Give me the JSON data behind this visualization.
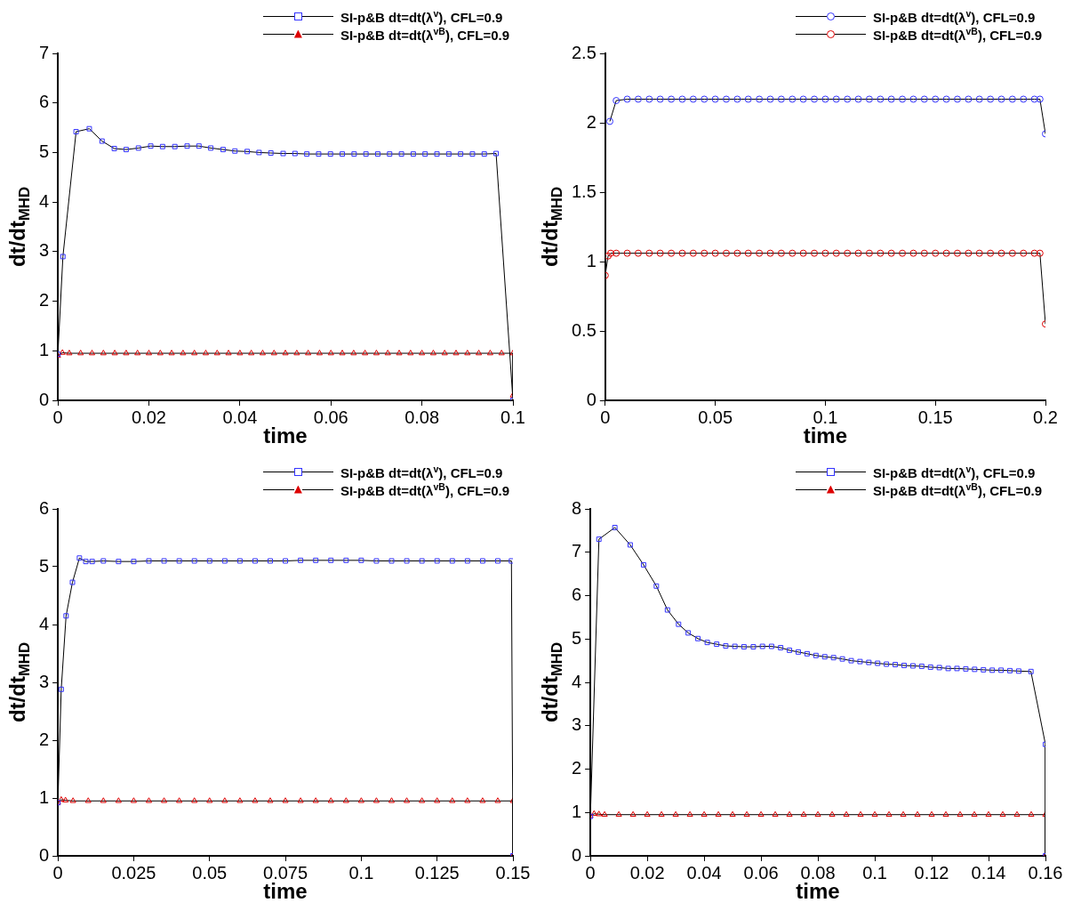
{
  "chart_data": [
    {
      "type": "line",
      "xlabel": "time",
      "ylabel": "dt/dt$_{MHD}$",
      "legend": "top right",
      "xlim": [
        0,
        0.1
      ],
      "xticks": [
        0,
        0.02,
        0.04,
        0.06,
        0.08,
        0.1
      ],
      "ylim": [
        0,
        7
      ],
      "yticks": [
        0,
        1,
        2,
        3,
        4,
        5,
        6,
        7
      ],
      "series": [
        {
          "name": "SI-p&B dt=dt(λ$^{v}$), CFL=0.9",
          "color": "#3333ff",
          "marker": "square",
          "x": [
            0,
            0.0011,
            0.004,
            0.0069,
            0.0097,
            0.0124,
            0.015,
            0.0177,
            0.0204,
            0.023,
            0.0257,
            0.0284,
            0.031,
            0.0336,
            0.0363,
            0.0389,
            0.0416,
            0.0442,
            0.0468,
            0.0495,
            0.0521,
            0.0547,
            0.0573,
            0.0599,
            0.0625,
            0.0651,
            0.0677,
            0.0703,
            0.0729,
            0.0755,
            0.0781,
            0.0807,
            0.0833,
            0.0859,
            0.0885,
            0.0911,
            0.0937,
            0.0963,
            0.1
          ],
          "values": [
            0.93,
            2.9,
            5.42,
            5.48,
            5.23,
            5.08,
            5.06,
            5.09,
            5.13,
            5.12,
            5.12,
            5.13,
            5.13,
            5.09,
            5.06,
            5.03,
            5.02,
            5.0,
            4.99,
            4.98,
            4.98,
            4.97,
            4.97,
            4.97,
            4.97,
            4.97,
            4.97,
            4.97,
            4.97,
            4.97,
            4.97,
            4.97,
            4.97,
            4.97,
            4.97,
            4.97,
            4.97,
            4.98,
            0
          ]
        },
        {
          "name": "SI-p&B dt=dt(λ$^{vB}$), CFL=0.9",
          "color": "#dd0000",
          "marker": "triangle",
          "x": [
            0,
            0.001,
            0.0025,
            0.005,
            0.0075,
            0.01,
            0.0125,
            0.015,
            0.0175,
            0.02,
            0.0225,
            0.025,
            0.0275,
            0.03,
            0.0325,
            0.035,
            0.0375,
            0.04,
            0.0425,
            0.045,
            0.0475,
            0.05,
            0.0525,
            0.055,
            0.0575,
            0.06,
            0.0625,
            0.065,
            0.0675,
            0.07,
            0.0725,
            0.075,
            0.0775,
            0.08,
            0.0825,
            0.085,
            0.0875,
            0.09,
            0.0925,
            0.095,
            0.0975,
            0.1,
            0.1
          ],
          "values": [
            0.9,
            0.96,
            0.95,
            0.95,
            0.95,
            0.95,
            0.95,
            0.95,
            0.95,
            0.95,
            0.95,
            0.95,
            0.95,
            0.95,
            0.95,
            0.95,
            0.95,
            0.95,
            0.95,
            0.95,
            0.95,
            0.95,
            0.95,
            0.95,
            0.95,
            0.95,
            0.95,
            0.95,
            0.95,
            0.95,
            0.95,
            0.95,
            0.95,
            0.95,
            0.95,
            0.95,
            0.95,
            0.95,
            0.95,
            0.95,
            0.95,
            0.95,
            0.1
          ]
        }
      ]
    },
    {
      "type": "line",
      "xlabel": "time",
      "ylabel": "dt/dt$_{MHD}$",
      "legend": "top right",
      "xlim": [
        0,
        0.2
      ],
      "xticks": [
        0,
        0.05,
        0.1,
        0.15,
        0.2
      ],
      "ylim": [
        0,
        2.5
      ],
      "yticks": [
        0,
        0.5,
        1,
        1.5,
        2,
        2.5
      ],
      "series": [
        {
          "name": "SI-p&B dt=dt(λ$^{v}$), CFL=0.9",
          "color": "#3333ff",
          "marker": "circle",
          "x": [
            0.0021,
            0.005,
            0.01,
            0.015,
            0.02,
            0.025,
            0.03,
            0.035,
            0.04,
            0.045,
            0.05,
            0.055,
            0.06,
            0.065,
            0.07,
            0.075,
            0.08,
            0.085,
            0.09,
            0.095,
            0.1,
            0.105,
            0.11,
            0.115,
            0.12,
            0.125,
            0.13,
            0.135,
            0.14,
            0.145,
            0.15,
            0.155,
            0.16,
            0.165,
            0.17,
            0.175,
            0.18,
            0.185,
            0.19,
            0.195,
            0.1975,
            0.2
          ],
          "values": [
            2.01,
            2.16,
            2.17,
            2.17,
            2.17,
            2.17,
            2.17,
            2.17,
            2.17,
            2.17,
            2.17,
            2.17,
            2.17,
            2.17,
            2.17,
            2.17,
            2.17,
            2.17,
            2.17,
            2.17,
            2.17,
            2.17,
            2.17,
            2.17,
            2.17,
            2.17,
            2.17,
            2.17,
            2.17,
            2.17,
            2.17,
            2.17,
            2.17,
            2.17,
            2.17,
            2.17,
            2.17,
            2.17,
            2.17,
            2.17,
            2.17,
            1.92
          ]
        },
        {
          "name": "SI-p&B dt=dt(λ$^{vB}$), CFL=0.9",
          "color": "#dd0000",
          "marker": "circle",
          "x": [
            0,
            0.0013,
            0.0025,
            0.005,
            0.01,
            0.015,
            0.02,
            0.025,
            0.03,
            0.035,
            0.04,
            0.045,
            0.05,
            0.055,
            0.06,
            0.065,
            0.07,
            0.075,
            0.08,
            0.085,
            0.09,
            0.095,
            0.1,
            0.105,
            0.11,
            0.115,
            0.12,
            0.125,
            0.13,
            0.135,
            0.14,
            0.145,
            0.15,
            0.155,
            0.16,
            0.165,
            0.17,
            0.175,
            0.18,
            0.185,
            0.19,
            0.195,
            0.1975,
            0.2
          ],
          "values": [
            0.9,
            1.04,
            1.06,
            1.06,
            1.06,
            1.06,
            1.06,
            1.06,
            1.06,
            1.06,
            1.06,
            1.06,
            1.06,
            1.06,
            1.06,
            1.06,
            1.06,
            1.06,
            1.06,
            1.06,
            1.06,
            1.06,
            1.06,
            1.06,
            1.06,
            1.06,
            1.06,
            1.06,
            1.06,
            1.06,
            1.06,
            1.06,
            1.06,
            1.06,
            1.06,
            1.06,
            1.06,
            1.06,
            1.06,
            1.06,
            1.06,
            1.06,
            1.06,
            0.55
          ]
        }
      ]
    },
    {
      "type": "line",
      "xlabel": "time",
      "ylabel": "dt/dt$_{MHD}$",
      "legend": "top right",
      "xlim": [
        0,
        0.15
      ],
      "xticks": [
        0,
        0.025,
        0.05,
        0.075,
        0.1,
        0.125,
        0.15
      ],
      "ylim": [
        0,
        6
      ],
      "yticks": [
        0,
        1,
        2,
        3,
        4,
        5,
        6
      ],
      "series": [
        {
          "name": "SI-p&B dt=dt(λ$^{v}$), CFL=0.9",
          "color": "#3333ff",
          "marker": "square",
          "x": [
            0,
            0.0011,
            0.0027,
            0.0048,
            0.0071,
            0.0092,
            0.0113,
            0.015,
            0.02,
            0.025,
            0.03,
            0.035,
            0.04,
            0.045,
            0.05,
            0.055,
            0.06,
            0.065,
            0.07,
            0.075,
            0.08,
            0.085,
            0.09,
            0.095,
            0.1,
            0.105,
            0.11,
            0.115,
            0.12,
            0.125,
            0.13,
            0.135,
            0.14,
            0.145,
            0.1495,
            0.15
          ],
          "values": [
            0.92,
            2.88,
            4.15,
            4.73,
            5.15,
            5.09,
            5.09,
            5.1,
            5.09,
            5.09,
            5.1,
            5.1,
            5.1,
            5.1,
            5.1,
            5.1,
            5.1,
            5.1,
            5.1,
            5.1,
            5.11,
            5.11,
            5.11,
            5.11,
            5.11,
            5.1,
            5.1,
            5.1,
            5.1,
            5.1,
            5.1,
            5.1,
            5.1,
            5.1,
            5.1,
            0
          ]
        },
        {
          "name": "SI-p&B dt=dt(λ$^{vB}$), CFL=0.9",
          "color": "#dd0000",
          "marker": "triangle",
          "x": [
            0,
            0.0011,
            0.0025,
            0.005,
            0.01,
            0.015,
            0.02,
            0.025,
            0.03,
            0.035,
            0.04,
            0.045,
            0.05,
            0.055,
            0.06,
            0.065,
            0.07,
            0.075,
            0.08,
            0.085,
            0.09,
            0.095,
            0.1,
            0.105,
            0.11,
            0.115,
            0.12,
            0.125,
            0.13,
            0.135,
            0.14,
            0.145,
            0.15,
            0.15
          ],
          "values": [
            0.92,
            0.97,
            0.96,
            0.95,
            0.95,
            0.95,
            0.95,
            0.95,
            0.95,
            0.95,
            0.95,
            0.95,
            0.95,
            0.95,
            0.95,
            0.95,
            0.95,
            0.95,
            0.95,
            0.95,
            0.95,
            0.95,
            0.95,
            0.95,
            0.95,
            0.95,
            0.95,
            0.95,
            0.95,
            0.95,
            0.95,
            0.95,
            0.95,
            0
          ]
        }
      ]
    },
    {
      "type": "line",
      "xlabel": "time",
      "ylabel": "dt/dt$_{MHD}$",
      "legend": "top right",
      "xlim": [
        0,
        0.16
      ],
      "xticks": [
        0,
        0.02,
        0.04,
        0.06,
        0.08,
        0.1,
        0.12,
        0.14,
        0.16
      ],
      "ylim": [
        0,
        8
      ],
      "yticks": [
        0,
        1,
        2,
        3,
        4,
        5,
        6,
        7,
        8
      ],
      "series": [
        {
          "name": "SI-p&B dt=dt(λ$^{v}$), CFL=0.9",
          "color": "#3333ff",
          "marker": "square",
          "x": [
            0,
            0.003,
            0.0086,
            0.014,
            0.0187,
            0.0232,
            0.0271,
            0.031,
            0.0344,
            0.0378,
            0.0411,
            0.0444,
            0.0476,
            0.0508,
            0.054,
            0.0573,
            0.0605,
            0.0637,
            0.0669,
            0.07,
            0.0731,
            0.0762,
            0.0793,
            0.0824,
            0.0855,
            0.0886,
            0.0917,
            0.0948,
            0.0979,
            0.101,
            0.1041,
            0.1072,
            0.1103,
            0.1134,
            0.1165,
            0.1196,
            0.1227,
            0.1258,
            0.1289,
            0.132,
            0.1351,
            0.1382,
            0.1413,
            0.1444,
            0.1475,
            0.1506,
            0.1549,
            0.16,
            0.16
          ],
          "values": [
            0.91,
            7.3,
            7.57,
            7.17,
            6.71,
            6.22,
            5.67,
            5.34,
            5.14,
            5.01,
            4.92,
            4.88,
            4.84,
            4.83,
            4.82,
            4.82,
            4.83,
            4.83,
            4.8,
            4.74,
            4.7,
            4.66,
            4.62,
            4.59,
            4.57,
            4.54,
            4.5,
            4.48,
            4.46,
            4.44,
            4.42,
            4.41,
            4.39,
            4.38,
            4.37,
            4.35,
            4.34,
            4.32,
            4.32,
            4.31,
            4.3,
            4.29,
            4.28,
            4.28,
            4.27,
            4.26,
            4.25,
            2.57,
            0
          ]
        },
        {
          "name": "SI-p&B dt=dt(λ$^{vB}$), CFL=0.9",
          "color": "#dd0000",
          "marker": "triangle",
          "x": [
            0,
            0.0013,
            0.003,
            0.005,
            0.01,
            0.015,
            0.02,
            0.025,
            0.03,
            0.035,
            0.04,
            0.045,
            0.05,
            0.055,
            0.06,
            0.065,
            0.07,
            0.075,
            0.08,
            0.085,
            0.09,
            0.095,
            0.1,
            0.105,
            0.11,
            0.115,
            0.12,
            0.125,
            0.13,
            0.135,
            0.14,
            0.145,
            0.15,
            0.155,
            0.16,
            0.16
          ],
          "values": [
            0.92,
            0.97,
            0.96,
            0.95,
            0.95,
            0.95,
            0.95,
            0.95,
            0.95,
            0.95,
            0.95,
            0.95,
            0.95,
            0.95,
            0.95,
            0.95,
            0.95,
            0.95,
            0.95,
            0.95,
            0.95,
            0.95,
            0.95,
            0.95,
            0.95,
            0.95,
            0.95,
            0.95,
            0.95,
            0.95,
            0.95,
            0.95,
            0.95,
            0.95,
            0.95,
            0
          ]
        }
      ]
    }
  ]
}
